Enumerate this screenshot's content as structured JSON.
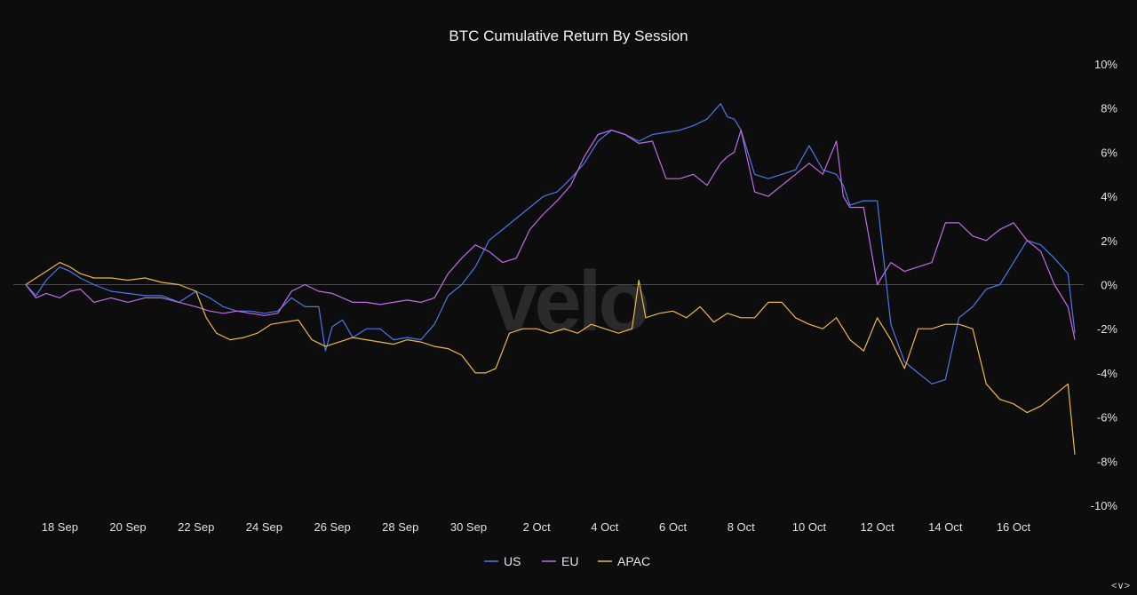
{
  "chart_data": {
    "type": "line",
    "title": "BTC Cumulative Return By Session",
    "watermark": "velo",
    "x_axis": {
      "tick_labels": [
        "18 Sep",
        "20 Sep",
        "22 Sep",
        "24 Sep",
        "26 Sep",
        "28 Sep",
        "30 Sep",
        "2 Oct",
        "4 Oct",
        "6 Oct",
        "8 Oct",
        "10 Oct",
        "12 Oct",
        "14 Oct",
        "16 Oct"
      ],
      "range": [
        "17 Sep",
        "17.8 Oct"
      ]
    },
    "y_axis": {
      "position": "right",
      "unit": "%",
      "ylim": [
        -10,
        10
      ],
      "tick_labels": [
        "10%",
        "8%",
        "6%",
        "4%",
        "2%",
        "0%",
        "-2%",
        "-4%",
        "-6%",
        "-8%",
        "-10%"
      ]
    },
    "zero_line": true,
    "legend": {
      "placement": "bottom-center"
    },
    "series": [
      {
        "name": "US",
        "color": "#4a78e8",
        "x": [
          17.0,
          17.3,
          17.6,
          18.0,
          18.3,
          18.6,
          19.0,
          19.5,
          20.0,
          20.5,
          21.0,
          21.5,
          22.0,
          22.4,
          22.8,
          23.2,
          23.6,
          24.0,
          24.4,
          24.8,
          25.2,
          25.6,
          25.8,
          26.0,
          26.3,
          26.6,
          27.0,
          27.4,
          27.8,
          28.2,
          28.6,
          29.0,
          29.4,
          29.8,
          30.2,
          30.6,
          31.0,
          31.4,
          31.8,
          32.2,
          32.6,
          33.0,
          33.4,
          33.8,
          34.2,
          34.6,
          35.0,
          35.4,
          35.8,
          36.2,
          36.6,
          37.0,
          37.4,
          37.6,
          37.8,
          38.0,
          38.4,
          38.8,
          39.2,
          39.6,
          40.0,
          40.4,
          40.8,
          41.0,
          41.2,
          41.6,
          42.0,
          42.4,
          42.8,
          43.2,
          43.6,
          44.0,
          44.4,
          44.8,
          45.2,
          45.6,
          46.0,
          46.4,
          46.8,
          47.2,
          47.6,
          47.8
        ],
        "values": [
          0.0,
          -0.5,
          0.2,
          0.8,
          0.6,
          0.3,
          0.0,
          -0.3,
          -0.4,
          -0.5,
          -0.5,
          -0.8,
          -0.3,
          -0.6,
          -1.0,
          -1.2,
          -1.2,
          -1.3,
          -1.2,
          -0.6,
          -1.0,
          -1.0,
          -3.0,
          -1.9,
          -1.6,
          -2.4,
          -2.0,
          -2.0,
          -2.5,
          -2.4,
          -2.5,
          -1.8,
          -0.5,
          0.0,
          0.8,
          2.0,
          2.5,
          3.0,
          3.5,
          4.0,
          4.2,
          4.8,
          5.5,
          6.5,
          7.0,
          6.8,
          6.5,
          6.8,
          6.9,
          7.0,
          7.2,
          7.5,
          8.2,
          7.6,
          7.5,
          7.0,
          5.0,
          4.8,
          5.0,
          5.2,
          6.3,
          5.2,
          5.0,
          4.5,
          3.6,
          3.8,
          3.8,
          -1.8,
          -3.5,
          -4.0,
          -4.5,
          -4.3,
          -1.5,
          -1.0,
          -0.2,
          0.0,
          1.0,
          2.0,
          1.8,
          1.2,
          0.5,
          -2.2
        ]
      },
      {
        "name": "EU",
        "color": "#c46ae8",
        "x": [
          17.0,
          17.3,
          17.6,
          18.0,
          18.3,
          18.6,
          19.0,
          19.5,
          20.0,
          20.5,
          21.0,
          21.5,
          22.0,
          22.4,
          22.8,
          23.2,
          23.6,
          24.0,
          24.4,
          24.8,
          25.2,
          25.6,
          26.0,
          26.3,
          26.6,
          27.0,
          27.4,
          27.8,
          28.2,
          28.6,
          29.0,
          29.4,
          29.8,
          30.2,
          30.6,
          31.0,
          31.4,
          31.8,
          32.2,
          32.6,
          33.0,
          33.4,
          33.8,
          34.2,
          34.6,
          35.0,
          35.4,
          35.8,
          36.2,
          36.6,
          37.0,
          37.4,
          37.6,
          37.8,
          38.0,
          38.4,
          38.8,
          39.2,
          39.6,
          40.0,
          40.4,
          40.8,
          41.0,
          41.2,
          41.6,
          42.0,
          42.4,
          42.8,
          43.2,
          43.6,
          44.0,
          44.4,
          44.8,
          45.2,
          45.6,
          46.0,
          46.4,
          46.8,
          47.2,
          47.6,
          47.8
        ],
        "values": [
          0.0,
          -0.6,
          -0.4,
          -0.6,
          -0.3,
          -0.2,
          -0.8,
          -0.6,
          -0.8,
          -0.6,
          -0.6,
          -0.8,
          -1.0,
          -1.2,
          -1.3,
          -1.2,
          -1.3,
          -1.4,
          -1.3,
          -0.3,
          0.0,
          -0.3,
          -0.4,
          -0.6,
          -0.8,
          -0.8,
          -0.9,
          -0.8,
          -0.7,
          -0.8,
          -0.6,
          0.5,
          1.2,
          1.8,
          1.5,
          1.0,
          1.2,
          2.5,
          3.2,
          3.8,
          4.5,
          5.8,
          6.8,
          7.0,
          6.8,
          6.4,
          6.5,
          4.8,
          4.8,
          5.0,
          4.5,
          5.5,
          5.8,
          6.0,
          7.0,
          4.2,
          4.0,
          4.5,
          5.0,
          5.5,
          5.0,
          6.5,
          4.0,
          3.5,
          3.5,
          0.0,
          1.0,
          0.6,
          0.8,
          1.0,
          2.8,
          2.8,
          2.2,
          2.0,
          2.5,
          2.8,
          2.0,
          1.5,
          0.0,
          -1.0,
          -2.5
        ]
      },
      {
        "name": "APAC",
        "color": "#f0b64a",
        "x": [
          17.0,
          17.3,
          17.6,
          18.0,
          18.3,
          18.6,
          19.0,
          19.5,
          20.0,
          20.5,
          21.0,
          21.5,
          22.0,
          22.3,
          22.6,
          23.0,
          23.4,
          23.8,
          24.2,
          24.6,
          25.0,
          25.4,
          25.8,
          26.2,
          26.6,
          27.0,
          27.4,
          27.8,
          28.2,
          28.6,
          29.0,
          29.4,
          29.8,
          30.2,
          30.5,
          30.8,
          31.2,
          31.6,
          32.0,
          32.4,
          32.8,
          33.2,
          33.6,
          34.0,
          34.4,
          34.8,
          35.0,
          35.2,
          35.6,
          36.0,
          36.4,
          36.8,
          37.2,
          37.6,
          38.0,
          38.4,
          38.8,
          39.2,
          39.6,
          40.0,
          40.4,
          40.8,
          41.2,
          41.6,
          42.0,
          42.4,
          42.8,
          43.2,
          43.6,
          44.0,
          44.4,
          44.8,
          45.2,
          45.6,
          46.0,
          46.4,
          46.8,
          47.2,
          47.6,
          47.8
        ],
        "values": [
          0.0,
          0.3,
          0.6,
          1.0,
          0.8,
          0.5,
          0.3,
          0.3,
          0.2,
          0.3,
          0.1,
          0.0,
          -0.3,
          -1.5,
          -2.2,
          -2.5,
          -2.4,
          -2.2,
          -1.8,
          -1.7,
          -1.6,
          -2.5,
          -2.8,
          -2.6,
          -2.4,
          -2.5,
          -2.6,
          -2.7,
          -2.5,
          -2.6,
          -2.8,
          -2.9,
          -3.2,
          -4.0,
          -4.0,
          -3.8,
          -2.2,
          -2.0,
          -2.0,
          -2.2,
          -2.0,
          -2.2,
          -1.8,
          -2.0,
          -2.2,
          -2.0,
          0.2,
          -1.5,
          -1.3,
          -1.2,
          -1.5,
          -1.0,
          -1.7,
          -1.3,
          -1.5,
          -1.5,
          -0.8,
          -0.8,
          -1.5,
          -1.8,
          -2.0,
          -1.5,
          -2.5,
          -3.0,
          -1.5,
          -2.5,
          -3.8,
          -2.0,
          -2.0,
          -1.8,
          -1.8,
          -2.0,
          -4.5,
          -5.2,
          -5.4,
          -5.8,
          -5.5,
          -5.0,
          -4.5,
          -7.7
        ]
      }
    ]
  },
  "nav": {
    "corner_label": "<∨>"
  }
}
